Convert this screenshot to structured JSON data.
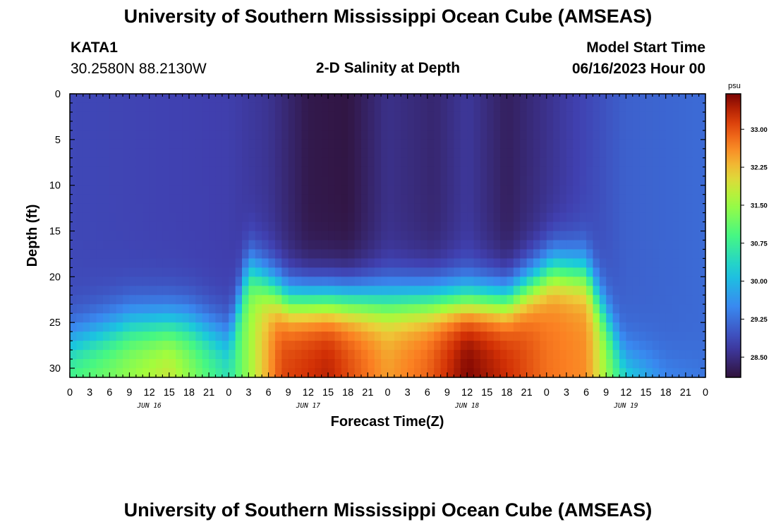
{
  "header": {
    "title": "University of Southern Mississippi Ocean Cube (AMSEAS)",
    "station": "KATA1",
    "coords": "30.2580N  88.2130W",
    "plot_title": "2-D Salinity at Depth",
    "model_start_label": "Model Start Time",
    "model_start_value": "06/16/2023 Hour 00"
  },
  "footer": {
    "title": "University of Southern Mississippi Ocean Cube (AMSEAS)"
  },
  "chart_data": {
    "type": "heatmap",
    "title": "2-D Salinity at Depth",
    "xlabel": "Forecast Time(Z)",
    "ylabel": "Depth (ft)",
    "x_ticks": [
      "0",
      "3",
      "6",
      "9",
      "12",
      "15",
      "18",
      "21",
      "0",
      "3",
      "6",
      "9",
      "12",
      "15",
      "18",
      "21",
      "0",
      "3",
      "6",
      "9",
      "12",
      "15",
      "18",
      "21",
      "0",
      "3",
      "6",
      "9",
      "12",
      "15",
      "18",
      "21",
      "0"
    ],
    "x_range_hours": [
      0,
      96
    ],
    "day_labels": [
      {
        "label": "JUN 16",
        "hour": 12
      },
      {
        "label": "JUN 17",
        "hour": 36
      },
      {
        "label": "JUN 18",
        "hour": 60
      },
      {
        "label": "JUN 19",
        "hour": 84
      }
    ],
    "y_ticks": [
      0,
      5,
      10,
      15,
      20,
      25,
      30
    ],
    "ylim": [
      0,
      31
    ],
    "colorbar": {
      "unit": "psu",
      "ticks": [
        "28.50",
        "29.25",
        "30.00",
        "30.75",
        "31.50",
        "32.25",
        "33.00"
      ],
      "range": [
        28.1,
        33.7
      ]
    },
    "surface_salinity_psu": [
      {
        "hour": 0,
        "value": 28.85
      },
      {
        "hour": 24,
        "value": 28.75
      },
      {
        "hour": 30,
        "value": 28.6
      },
      {
        "hour": 36,
        "value": 28.2
      },
      {
        "hour": 42,
        "value": 28.15
      },
      {
        "hour": 48,
        "value": 28.55
      },
      {
        "hour": 55,
        "value": 28.4
      },
      {
        "hour": 60,
        "value": 28.65
      },
      {
        "hour": 66,
        "value": 28.3
      },
      {
        "hour": 75,
        "value": 28.7
      },
      {
        "hour": 84,
        "value": 29.1
      },
      {
        "hour": 96,
        "value": 29.2
      }
    ],
    "bottom_salinity_psu": [
      {
        "hour": 0,
        "value": 31.0
      },
      {
        "hour": 6,
        "value": 31.3
      },
      {
        "hour": 15,
        "value": 31.9
      },
      {
        "hour": 21,
        "value": 31.0
      },
      {
        "hour": 24,
        "value": 30.6
      },
      {
        "hour": 27,
        "value": 31.5
      },
      {
        "hour": 32,
        "value": 33.1
      },
      {
        "hour": 39,
        "value": 33.4
      },
      {
        "hour": 43,
        "value": 33.0
      },
      {
        "hour": 48,
        "value": 32.5
      },
      {
        "hour": 54,
        "value": 32.9
      },
      {
        "hour": 60,
        "value": 33.7
      },
      {
        "hour": 66,
        "value": 33.3
      },
      {
        "hour": 72,
        "value": 32.8
      },
      {
        "hour": 78,
        "value": 32.6
      },
      {
        "hour": 83,
        "value": 30.8
      },
      {
        "hour": 90,
        "value": 29.6
      },
      {
        "hour": 96,
        "value": 29.4
      }
    ],
    "halocline_depth_ft": [
      {
        "hour": 0,
        "value": 27.0
      },
      {
        "hour": 9,
        "value": 25.0
      },
      {
        "hour": 18,
        "value": 25.0
      },
      {
        "hour": 24,
        "value": 26.5
      },
      {
        "hour": 27,
        "value": 19.0
      },
      {
        "hour": 33,
        "value": 22.5
      },
      {
        "hour": 48,
        "value": 22.5
      },
      {
        "hour": 66,
        "value": 22.5
      },
      {
        "hour": 73,
        "value": 19.0
      },
      {
        "hour": 78,
        "value": 19.5
      },
      {
        "hour": 84,
        "value": 29.0
      },
      {
        "hour": 96,
        "value": 30.5
      }
    ]
  }
}
